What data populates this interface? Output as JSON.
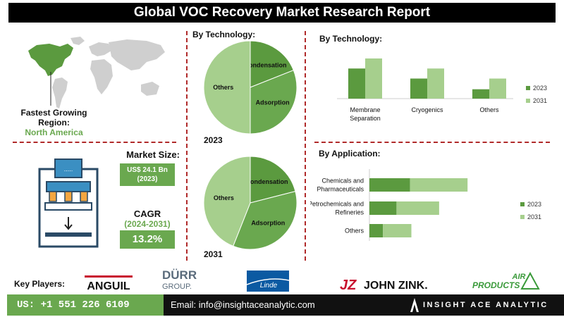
{
  "title": "Global VOC Recovery Market Research Report",
  "region": {
    "label": "Fastest Growing Region:",
    "value": "North America"
  },
  "market_size": {
    "label": "Market Size:",
    "value": "US$ 24.1 Bn",
    "year": "(2023)"
  },
  "cagr": {
    "label": "CAGR",
    "period": "(2024-2031)",
    "value": "13.2%"
  },
  "colors": {
    "dark_green": "#5b9a3f",
    "light_green": "#a6cf8d",
    "mid_green": "#6aa84f",
    "divider": "#b02a2a"
  },
  "chart_data": [
    {
      "type": "pie",
      "title": "By Technology:",
      "year": "2023",
      "categories": [
        "Condensation",
        "Adsorption",
        "Others"
      ],
      "values": [
        19,
        31,
        50
      ]
    },
    {
      "type": "pie",
      "year": "2031",
      "categories": [
        "Condensation",
        "Adsorption",
        "Others"
      ],
      "values": [
        21,
        35,
        44
      ]
    },
    {
      "type": "bar",
      "title": "By  Technology:",
      "categories": [
        "Membrane Separation",
        "Cryogenics",
        "Others"
      ],
      "series": [
        {
          "name": "2023",
          "values": [
            4.5,
            3.0,
            1.4
          ]
        },
        {
          "name": "2031",
          "values": [
            6.0,
            4.5,
            3.0
          ]
        }
      ],
      "legend": "right"
    },
    {
      "type": "bar",
      "orientation": "horizontal",
      "stacked": true,
      "title": "By Application:",
      "categories": [
        "Chemicals and Pharmaceuticals",
        "Petrochemicals and Refineries",
        "Others"
      ],
      "series": [
        {
          "name": "2023",
          "values": [
            6.0,
            4.0,
            2.0
          ]
        },
        {
          "name": "2031",
          "values": [
            8.5,
            6.3,
            4.2
          ]
        }
      ],
      "legend": "right"
    }
  ],
  "footer": {
    "key_players_label": "Key Players:",
    "players": [
      "ANGUIL",
      "DÜRR GROUP.",
      "Linde",
      "JOHN ZINK.",
      "AIR PRODUCTS"
    ],
    "phone": "US: +1 551 226 6109",
    "email": "Email: info@insightaceanalytic.com",
    "brand": "INSIGHT ACE ANALYTIC"
  }
}
